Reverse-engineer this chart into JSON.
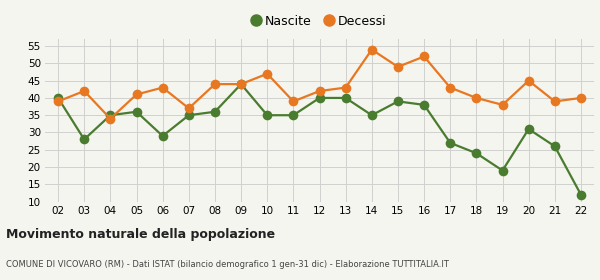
{
  "years": [
    "02",
    "03",
    "04",
    "05",
    "06",
    "07",
    "08",
    "09",
    "10",
    "11",
    "12",
    "13",
    "14",
    "15",
    "16",
    "17",
    "18",
    "19",
    "20",
    "21",
    "22"
  ],
  "nascite": [
    40,
    28,
    35,
    36,
    29,
    35,
    36,
    44,
    35,
    35,
    40,
    40,
    35,
    39,
    38,
    27,
    24,
    19,
    31,
    26,
    12
  ],
  "decessi": [
    39,
    42,
    34,
    41,
    43,
    37,
    44,
    44,
    47,
    39,
    42,
    43,
    54,
    49,
    52,
    43,
    40,
    38,
    45,
    39,
    40
  ],
  "nascite_color": "#4a7c2f",
  "decessi_color": "#e87722",
  "bg_color": "#f5f5f0",
  "grid_color": "#d0d0d0",
  "ylim": [
    10,
    57
  ],
  "yticks": [
    10,
    15,
    20,
    25,
    30,
    35,
    40,
    45,
    50,
    55
  ],
  "title": "Movimento naturale della popolazione",
  "subtitle": "COMUNE DI VICOVARO (RM) - Dati ISTAT (bilancio demografico 1 gen-31 dic) - Elaborazione TUTTITALIA.IT",
  "legend_nascite": "Nascite",
  "legend_decessi": "Decessi",
  "marker_size": 7,
  "line_width": 1.6
}
